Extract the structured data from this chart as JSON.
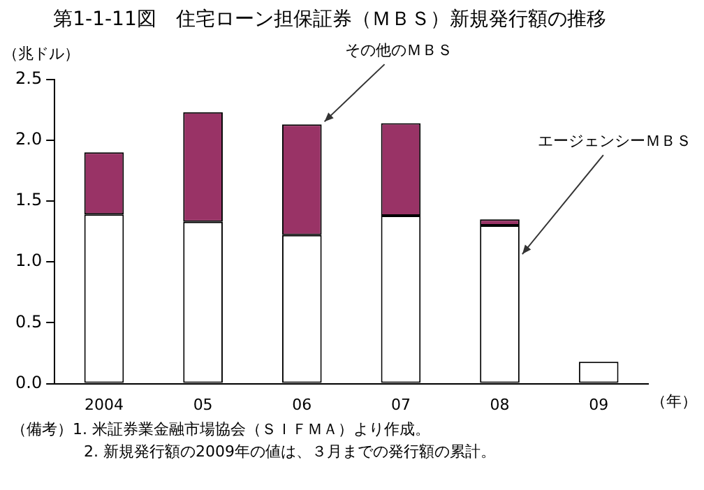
{
  "chart_data": {
    "type": "bar",
    "title": "第1-1-11図　住宅ローン担保証券（ＭＢＳ）新規発行額の推移",
    "ylabel": "（兆ドル）",
    "xlabel": "（年）",
    "categories": [
      "2004",
      "05",
      "06",
      "07",
      "08",
      "09"
    ],
    "stacked": true,
    "series": [
      {
        "name": "エージェンシーＭＢＳ",
        "color": "#ffffff",
        "values": [
          1.39,
          1.33,
          1.22,
          1.38,
          1.3,
          0.18
        ]
      },
      {
        "name": "その他のＭＢＳ",
        "color": "#993366",
        "values": [
          0.51,
          0.9,
          0.91,
          0.76,
          0.05,
          null
        ]
      }
    ],
    "ylim": [
      0,
      2.5
    ],
    "yticks": [
      {
        "value": 0,
        "label": "0.0"
      },
      {
        "value": 0.5,
        "label": "0.5"
      },
      {
        "value": 1,
        "label": "1.0"
      },
      {
        "value": 1.5,
        "label": "1.5"
      },
      {
        "value": 2,
        "label": "2.0"
      },
      {
        "value": 2.5,
        "label": "2.5"
      }
    ],
    "grid": false,
    "legend": false,
    "annotations": [
      "（備考）1. 米証券業金融市場協会（ＳＩＦＭＡ）より作成。",
      "2. 新規発行額の2009年の値は、３月までの発行額の累計。"
    ]
  }
}
